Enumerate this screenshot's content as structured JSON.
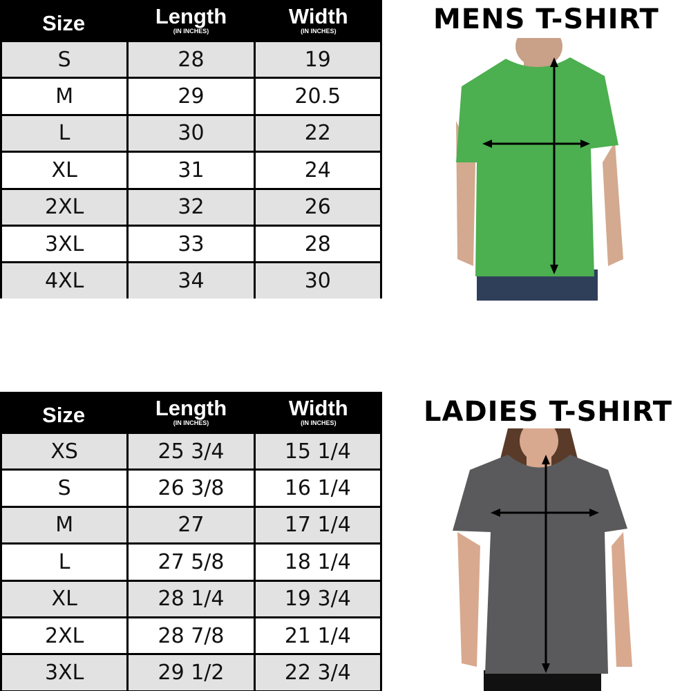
{
  "mens": {
    "title": "MENS T-SHIRT",
    "headers": [
      {
        "label": "Size",
        "sub": ""
      },
      {
        "label": "Length",
        "sub": "(IN INCHES)"
      },
      {
        "label": "Width",
        "sub": "(IN INCHES)"
      }
    ],
    "rows": [
      [
        "S",
        "28",
        "19"
      ],
      [
        "M",
        "29",
        "20.5"
      ],
      [
        "L",
        "30",
        "22"
      ],
      [
        "XL",
        "31",
        "24"
      ],
      [
        "2XL",
        "32",
        "26"
      ],
      [
        "3XL",
        "33",
        "28"
      ],
      [
        "4XL",
        "34",
        "30"
      ]
    ],
    "shirt_color": "#4caf50"
  },
  "ladies": {
    "title": "LADIES T-SHIRT",
    "headers": [
      {
        "label": "Size",
        "sub": ""
      },
      {
        "label": "Length",
        "sub": "(IN INCHES)"
      },
      {
        "label": "Width",
        "sub": "(IN INCHES)"
      }
    ],
    "rows": [
      [
        "XS",
        "25 3/4",
        "15 1/4"
      ],
      [
        "S",
        "26 3/8",
        "16 1/4"
      ],
      [
        "M",
        "27",
        "17 1/4"
      ],
      [
        "L",
        "27 5/8",
        "18 1/4"
      ],
      [
        "XL",
        "28 1/4",
        "19 3/4"
      ],
      [
        "2XL",
        "28 7/8",
        "21 1/4"
      ],
      [
        "3XL",
        "29 1/2",
        "22 3/4"
      ]
    ],
    "shirt_color": "#5a5a5c"
  }
}
